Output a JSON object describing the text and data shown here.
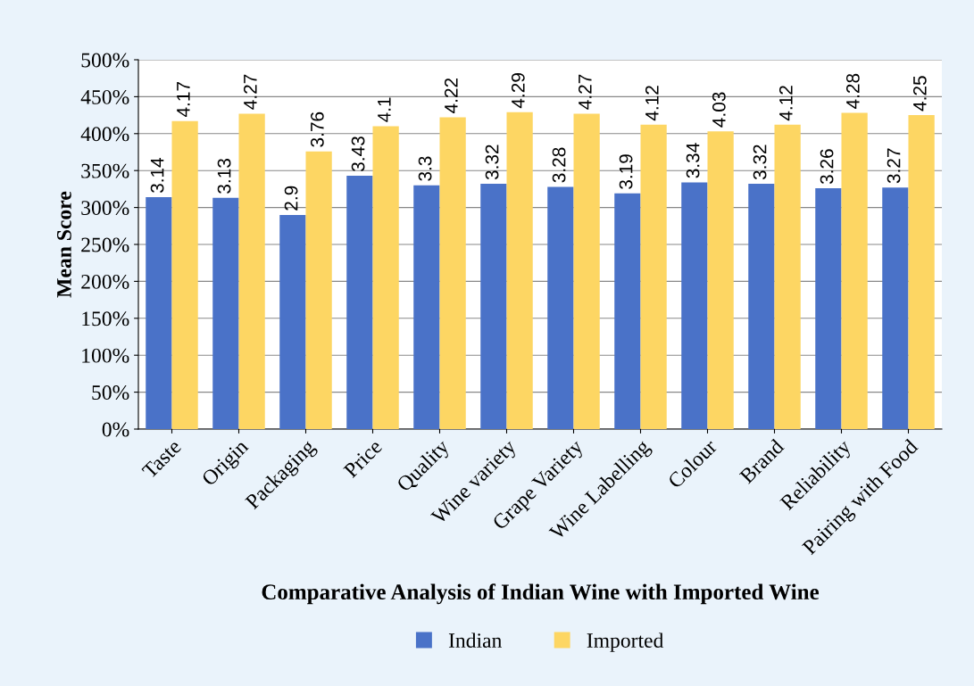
{
  "chart_data": {
    "type": "bar",
    "xlabel": "Comparative Analysis of Indian Wine with Imported Wine",
    "ylabel": "Mean Score",
    "categories": [
      "Taste",
      "Origin",
      "Packaging",
      "Price",
      "Quality",
      "Wine variety",
      "Grape Variety",
      "Wine Labelling",
      "Colour",
      "Brand",
      "Reliability",
      "Pairing with Food"
    ],
    "series": [
      {
        "name": "Indian",
        "color": "#4a72c8",
        "values": [
          3.14,
          3.13,
          2.9,
          3.43,
          3.3,
          3.32,
          3.28,
          3.19,
          3.34,
          3.32,
          3.26,
          3.27
        ]
      },
      {
        "name": "Imported",
        "color": "#fdd663",
        "values": [
          4.17,
          4.27,
          3.76,
          4.1,
          4.22,
          4.29,
          4.27,
          4.12,
          4.03,
          4.12,
          4.28,
          4.25
        ]
      }
    ],
    "ylim": [
      0,
      5
    ],
    "yticks": [
      {
        "value": 0,
        "label": "0%"
      },
      {
        "value": 0.5,
        "label": "50%"
      },
      {
        "value": 1,
        "label": "100%"
      },
      {
        "value": 1.5,
        "label": "150%"
      },
      {
        "value": 2,
        "label": "200%"
      },
      {
        "value": 2.5,
        "label": "250%"
      },
      {
        "value": 3,
        "label": "300%"
      },
      {
        "value": 3.5,
        "label": "350%"
      },
      {
        "value": 4,
        "label": "400%"
      },
      {
        "value": 4.5,
        "label": "450%"
      },
      {
        "value": 5,
        "label": "500%"
      }
    ],
    "grid": "y",
    "legend": "bottom",
    "data_labels": true
  }
}
